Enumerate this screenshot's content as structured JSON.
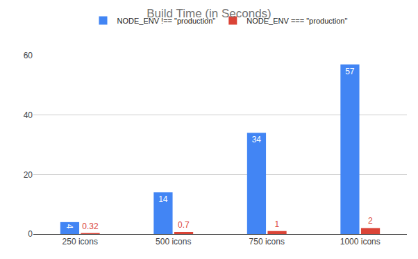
{
  "chart_data": {
    "type": "bar",
    "title": "Build Time (in Seconds)",
    "categories": [
      "250 icons",
      "500 icons",
      "750 icons",
      "1000 icons"
    ],
    "series": [
      {
        "name": "NODE_ENV !== \"production\"",
        "color": "#4285f4",
        "values": [
          4,
          14,
          34,
          57
        ]
      },
      {
        "name": "NODE_ENV === \"production\"",
        "color": "#db4437",
        "values": [
          0.32,
          0.7,
          1,
          2
        ]
      }
    ],
    "ylim": [
      0,
      60
    ],
    "yticks": [
      0,
      20,
      40,
      60
    ],
    "grid": true,
    "legend": "top",
    "data_labels": true
  }
}
